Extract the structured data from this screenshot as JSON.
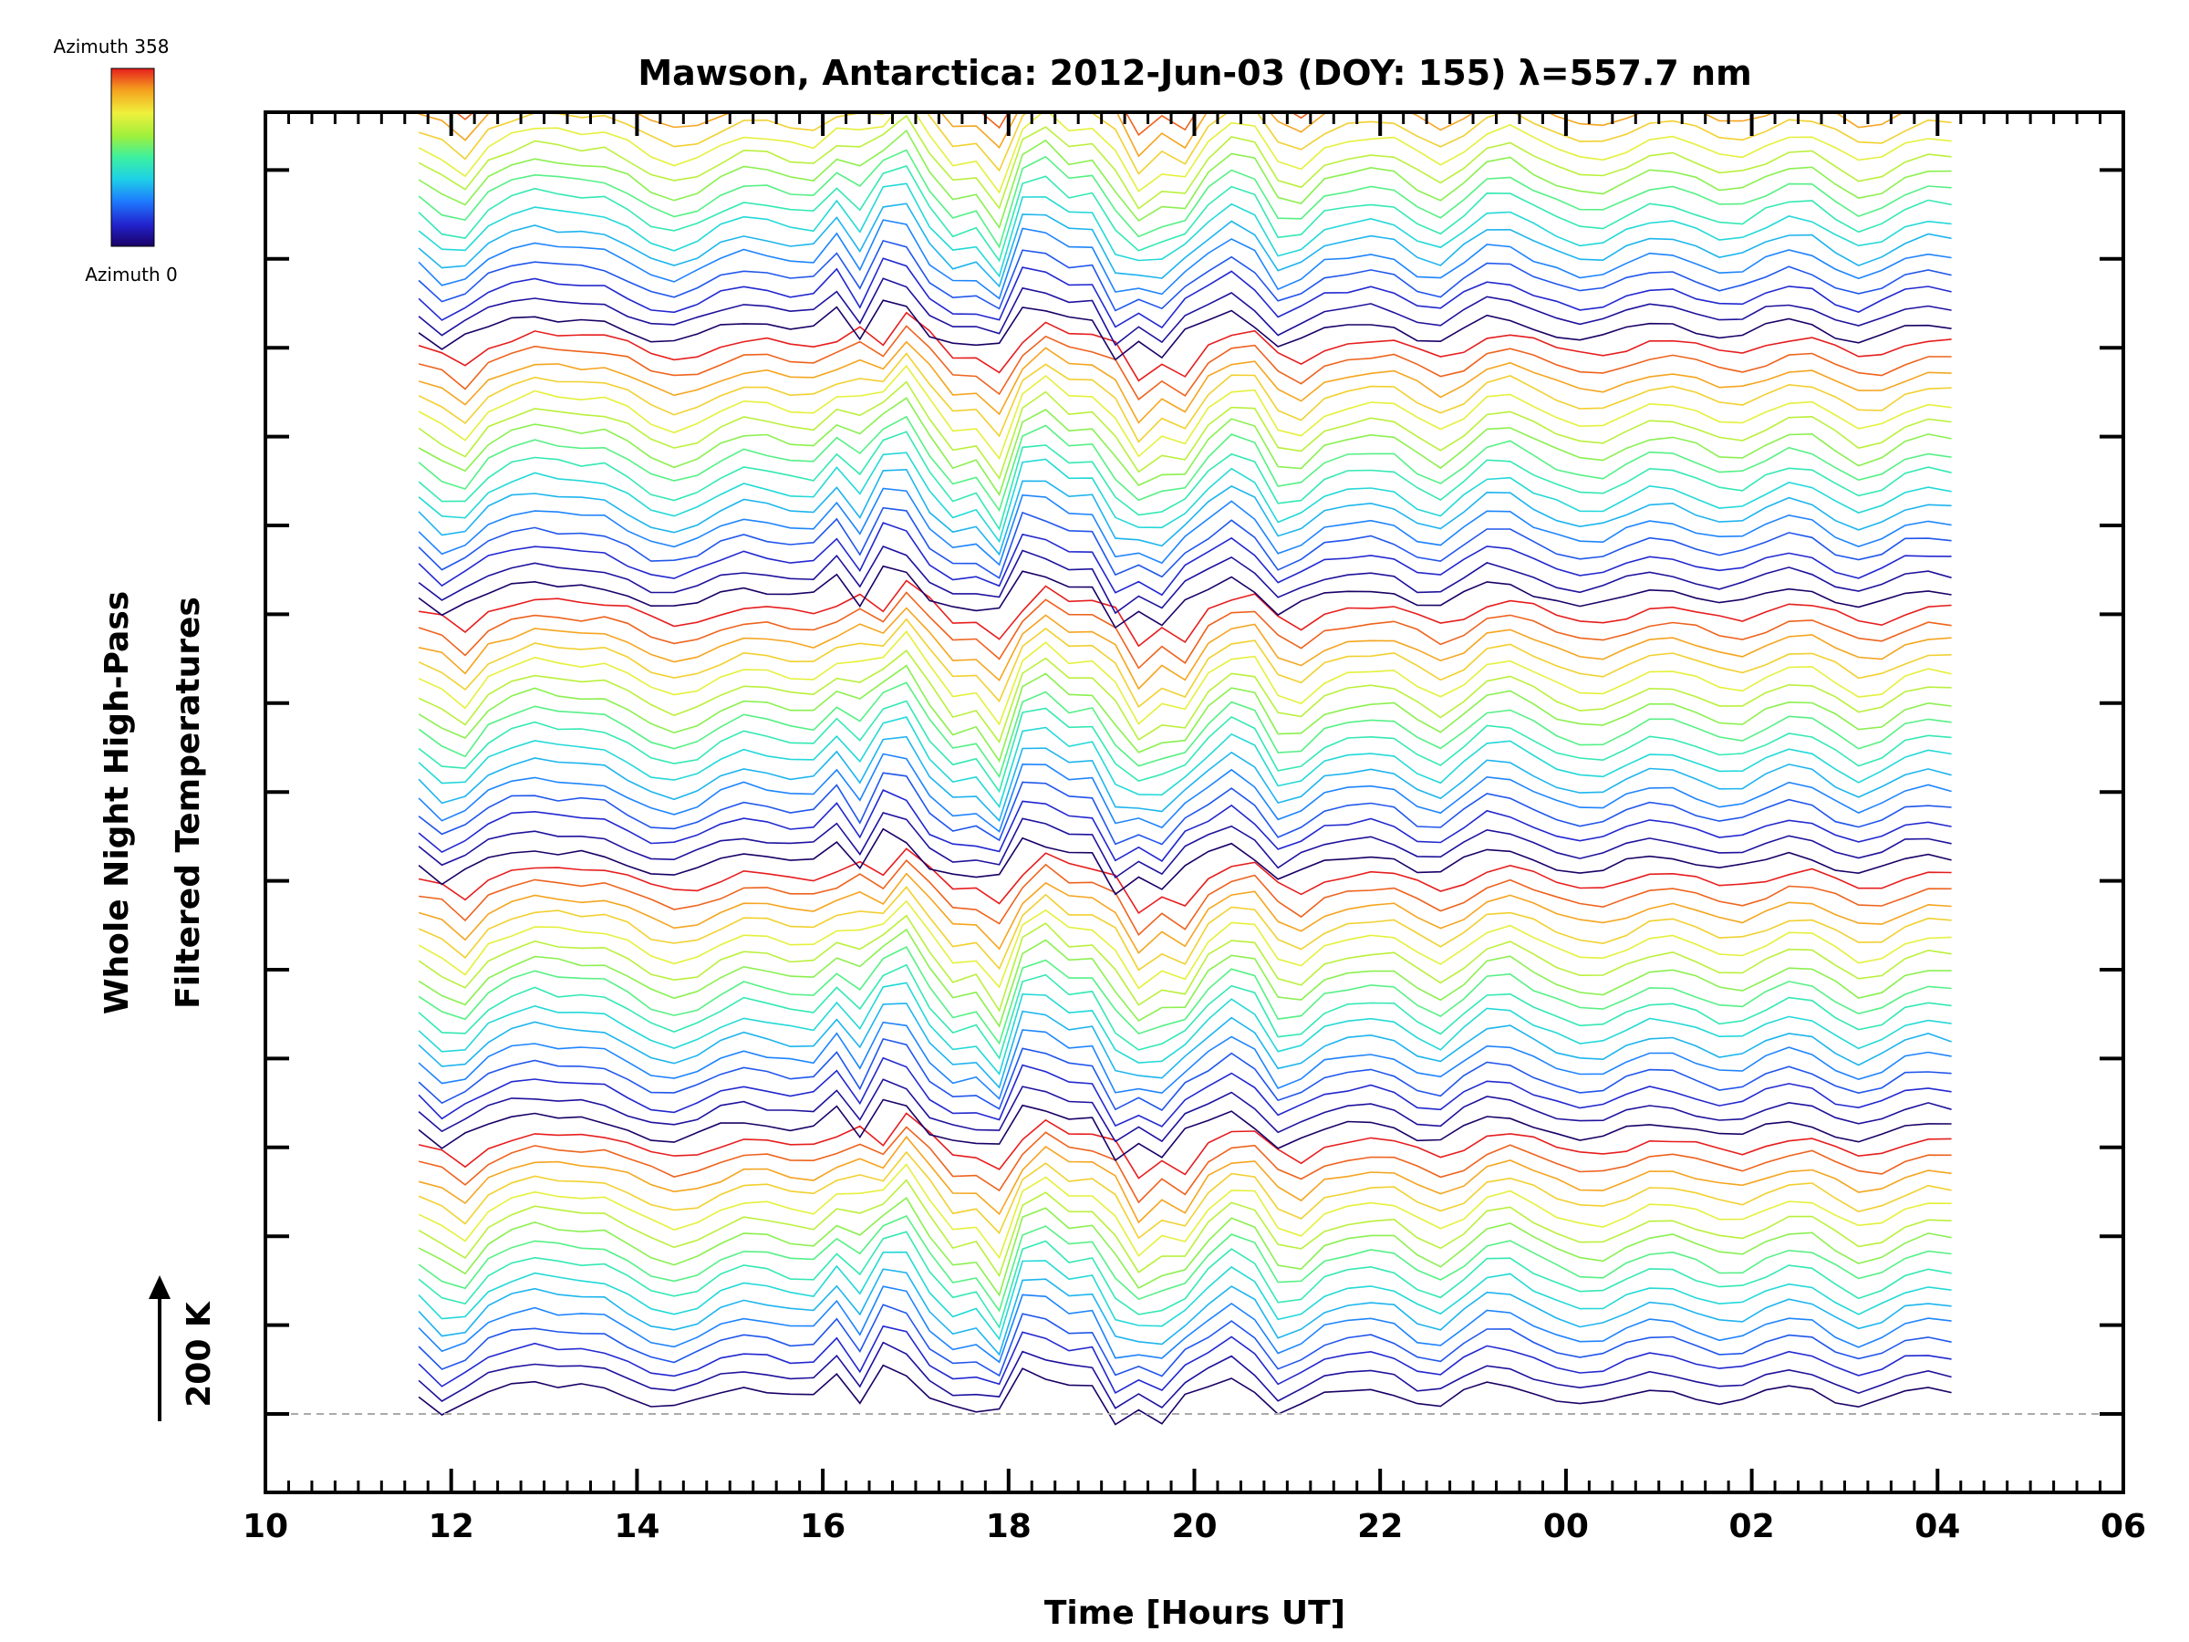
{
  "chart_data": {
    "type": "line",
    "title": "Mawson, Antarctica: 2012-Jun-03 (DOY: 155) λ=557.7 nm",
    "xlabel": "Time [Hours UT]",
    "ylabel_line1": "Whole Night High-Pass",
    "ylabel_line2": "Filtered Temperatures",
    "scale_label": "200 K",
    "x_tick_labels": [
      "10",
      "12",
      "14",
      "16",
      "18",
      "20",
      "22",
      "00",
      "02",
      "04",
      "06"
    ],
    "x_tick_hours": [
      10,
      12,
      14,
      16,
      18,
      20,
      22,
      24,
      26,
      28,
      30
    ],
    "xlim": [
      10,
      30
    ],
    "colorbar": {
      "top_label": "Azimuth 358",
      "bottom_label": "Azimuth 0",
      "azimuth_range": [
        0,
        358
      ],
      "colors": [
        "#1a0066",
        "#2222cc",
        "#1e78ff",
        "#1ed2e6",
        "#3cf0a0",
        "#9ff03c",
        "#f0f03c",
        "#f5a01e",
        "#e61e1e"
      ]
    },
    "series_layout": {
      "groups": 7,
      "lines_per_group": 16,
      "time_start_hours": 11.65,
      "time_end_hours": 28.25,
      "sample_step_hours": 0.25,
      "line_spacing_kelvin": 30
    },
    "grid": false,
    "baseline_dashed": true,
    "notes_color_dashed_baseline": "#aaaaaa"
  }
}
